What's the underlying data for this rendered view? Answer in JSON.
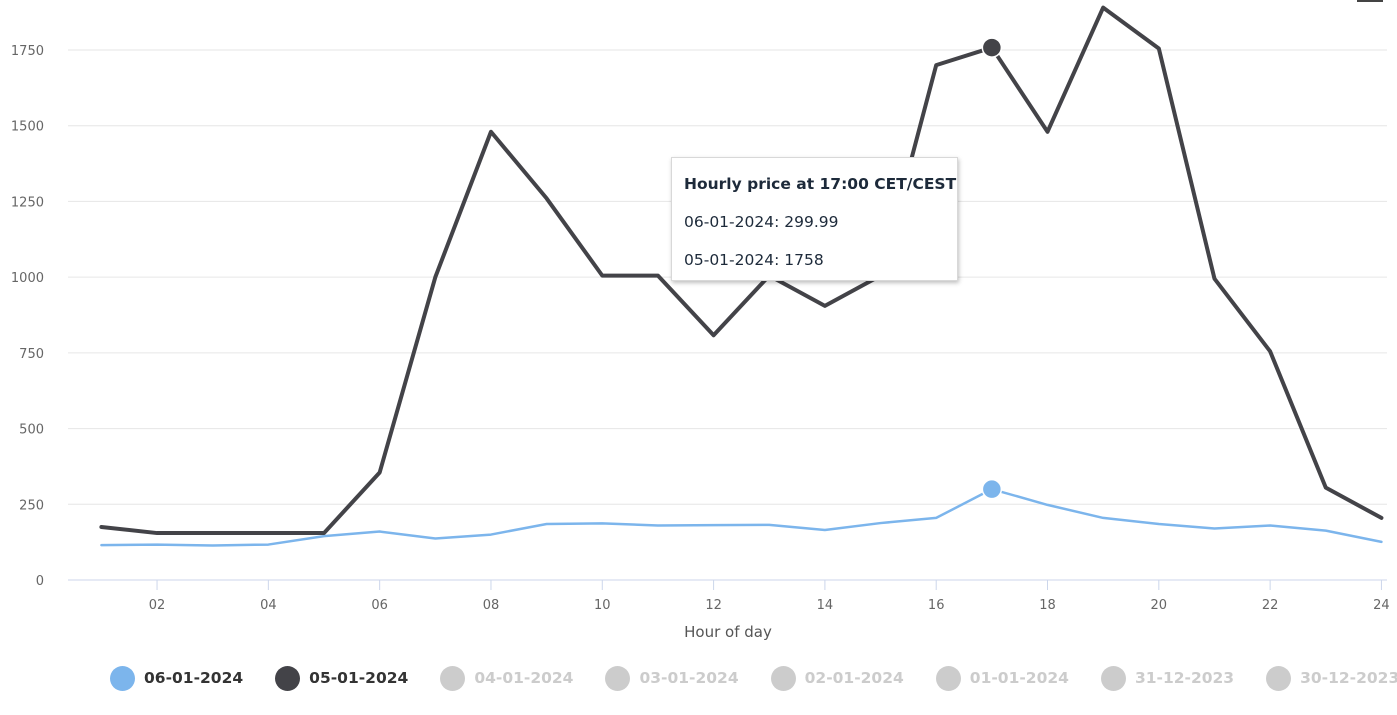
{
  "chart_data": {
    "type": "line",
    "xlabel": "Hour of day",
    "ylabel": "",
    "x": [
      1,
      2,
      3,
      4,
      5,
      6,
      7,
      8,
      9,
      10,
      11,
      12,
      13,
      14,
      15,
      16,
      17,
      18,
      19,
      20,
      21,
      22,
      23,
      24
    ],
    "xticks": [
      "02",
      "04",
      "06",
      "08",
      "10",
      "12",
      "14",
      "16",
      "18",
      "20",
      "22",
      "24"
    ],
    "xlim": [
      0.4,
      24.1
    ],
    "ylim": [
      0,
      1750
    ],
    "yticks": [
      "0",
      "250",
      "500",
      "750",
      "1000",
      "1250",
      "1500",
      "1750"
    ],
    "grid": true,
    "series": [
      {
        "name": "06-01-2024",
        "color": "#7cb5ec",
        "values": [
          115,
          117,
          114,
          117,
          145,
          160,
          137,
          150,
          185,
          187,
          180,
          181,
          182,
          165,
          188,
          205,
          299.99,
          248,
          205,
          185,
          170,
          180,
          163,
          126
        ]
      },
      {
        "name": "05-01-2024",
        "color": "#434348",
        "values": [
          175,
          155,
          155,
          155,
          155,
          355,
          1000,
          1480,
          1260,
          1005,
          1005,
          808,
          1005,
          905,
          1005,
          1700,
          1758,
          1480,
          1890,
          1755,
          995,
          755,
          305,
          205
        ]
      }
    ],
    "highlight_x": 17,
    "tooltip": {
      "title": "Hourly price at 17:00 CET/CEST",
      "rows": [
        "06-01-2024: 299.99",
        "05-01-2024: 1758"
      ]
    },
    "legend": {
      "placement": "bottom",
      "items": [
        {
          "label": "06-01-2024",
          "color": "#7cb5ec",
          "active": true
        },
        {
          "label": "05-01-2024",
          "color": "#434348",
          "active": true
        },
        {
          "label": "04-01-2024",
          "color": "#cccccc",
          "active": false
        },
        {
          "label": "03-01-2024",
          "color": "#cccccc",
          "active": false
        },
        {
          "label": "02-01-2024",
          "color": "#cccccc",
          "active": false
        },
        {
          "label": "01-01-2024",
          "color": "#cccccc",
          "active": false
        },
        {
          "label": "31-12-2023",
          "color": "#cccccc",
          "active": false
        },
        {
          "label": "30-12-2023",
          "color": "#cccccc",
          "active": false
        }
      ]
    }
  }
}
